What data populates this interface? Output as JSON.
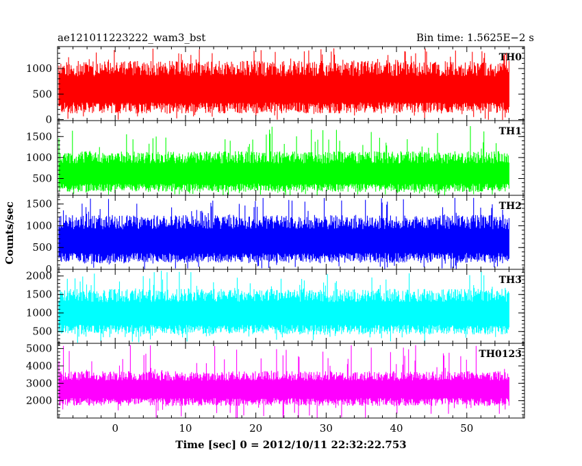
{
  "chart_data": {
    "type": "line",
    "title": "ae121011223222_wam3_bst",
    "subtitle": "Bin time: 1.5625E−2 s",
    "xlabel": "Time [sec] 0 = 2012/10/11 22:32:22.753",
    "ylabel": "Counts/sec",
    "xlim": [
      -8.2,
      58.2
    ],
    "x_ticks": [
      0,
      10,
      20,
      30,
      40,
      50
    ],
    "x_tick_labels": [
      "0",
      "10",
      "20",
      "30",
      "40",
      "50"
    ],
    "data_range": [
      -8,
      56
    ],
    "bin_time": 0.015625,
    "panels": [
      {
        "name": "TH0",
        "color": "#ff0000",
        "ylim": [
          -20,
          1430
        ],
        "y_ticks": [
          0,
          500,
          1000
        ],
        "y_tick_labels": [
          "0",
          "500",
          "1000"
        ],
        "mean": 600,
        "band_low": 120,
        "band_high": 1150,
        "spike_max": 1400
      },
      {
        "name": "TH1",
        "color": "#00ff00",
        "ylim": [
          100,
          1880
        ],
        "y_ticks": [
          500,
          1000,
          1500
        ],
        "y_tick_labels": [
          "500",
          "1000",
          "1500"
        ],
        "mean": 620,
        "band_low": 180,
        "band_high": 1150,
        "spike_max": 1750
      },
      {
        "name": "TH2",
        "color": "#0000ff",
        "ylim": [
          0,
          1700
        ],
        "y_ticks": [
          0,
          500,
          1000,
          1500
        ],
        "y_tick_labels": [
          "0",
          "500",
          "1000",
          "1500"
        ],
        "mean": 650,
        "band_low": 150,
        "band_high": 1250,
        "spike_max": 1650
      },
      {
        "name": "TH3",
        "color": "#00ffff",
        "ylim": [
          180,
          2180
        ],
        "y_ticks": [
          500,
          1000,
          1500,
          2000
        ],
        "y_tick_labels": [
          "500",
          "1000",
          "1500",
          "2000"
        ],
        "mean": 1000,
        "band_low": 420,
        "band_high": 1650,
        "spike_max": 2150
      },
      {
        "name": "TH0123",
        "color": "#ff00ff",
        "ylim": [
          1000,
          5300
        ],
        "y_ticks": [
          2000,
          3000,
          4000,
          5000
        ],
        "y_tick_labels": [
          "2000",
          "3000",
          "4000",
          "5000"
        ],
        "mean": 2700,
        "band_low": 1700,
        "band_high": 3700,
        "spike_max": 5200
      }
    ]
  }
}
